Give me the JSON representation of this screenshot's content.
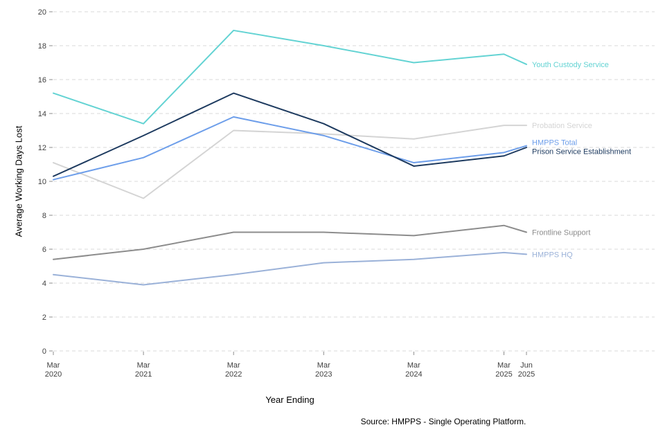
{
  "chart_data": {
    "type": "line",
    "title": "",
    "xlabel": "Year Ending",
    "ylabel": "Average Working Days Lost",
    "source": "Source: HMPPS - Single Operating Platform.",
    "ylim": [
      0,
      20
    ],
    "ytick_step": 2,
    "grid": "horizontal-dashed",
    "legend_position": "right-of-line-ends",
    "x_labels": [
      {
        "month": "Mar",
        "year": "2020"
      },
      {
        "month": "Mar",
        "year": "2021"
      },
      {
        "month": "Mar",
        "year": "2022"
      },
      {
        "month": "Mar",
        "year": "2023"
      },
      {
        "month": "Mar",
        "year": "2024"
      },
      {
        "month": "Mar",
        "year": "2025"
      },
      {
        "month": "Jun",
        "year": "2025"
      }
    ],
    "x_positions": [
      0,
      12,
      24,
      36,
      48,
      60,
      63
    ],
    "colors": {
      "grid": "#d9d9d9",
      "tick": "#8c8c8c",
      "tick_label": "#404040",
      "background": "#ffffff"
    },
    "series": [
      {
        "name": "Probation Service",
        "color": "#d4d4d4",
        "values": [
          11.1,
          9.0,
          13.0,
          12.8,
          12.5,
          13.3,
          13.3
        ]
      },
      {
        "name": "Frontline Support",
        "color": "#8c8c8c",
        "values": [
          5.4,
          6.0,
          7.0,
          7.0,
          6.8,
          7.4,
          7.0
        ]
      },
      {
        "name": "HMPPS HQ",
        "color": "#9ab1d8",
        "values": [
          4.5,
          3.9,
          4.5,
          5.2,
          5.4,
          5.8,
          5.7
        ]
      },
      {
        "name": "Youth Custody Service",
        "color": "#63d3d3",
        "values": [
          15.2,
          13.4,
          18.9,
          18.0,
          17.0,
          17.5,
          16.9
        ]
      },
      {
        "name": "HMPPS Total",
        "color": "#6d9eea",
        "values": [
          10.1,
          11.4,
          13.8,
          12.7,
          11.1,
          11.7,
          12.1
        ]
      },
      {
        "name": "Prison Service Establishment",
        "color": "#1d3a5f",
        "values": [
          10.3,
          12.7,
          15.2,
          13.4,
          10.9,
          11.5,
          12.0
        ]
      }
    ]
  }
}
